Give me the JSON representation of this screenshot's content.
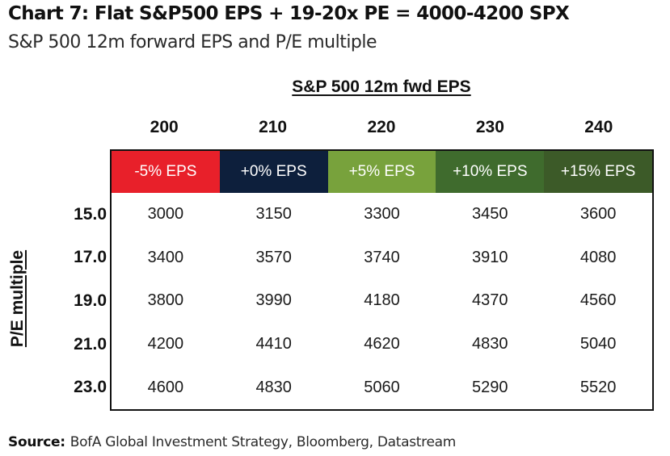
{
  "header": {
    "title": "Chart 7: Flat S&P500 EPS + 19-20x PE = 4000-4200 SPX",
    "subtitle": "S&P 500 12m forward EPS and P/E multiple"
  },
  "chart_data": {
    "type": "table",
    "column_axis_title": "S&P 500 12m fwd EPS",
    "row_axis_title": "P/E multiple",
    "columns": [
      "200",
      "210",
      "220",
      "230",
      "240"
    ],
    "column_labels": [
      "-5% EPS",
      "+0% EPS",
      "+5% EPS",
      "+10% EPS",
      "+15% EPS"
    ],
    "column_label_colors": [
      "#e8202a",
      "#0d1f3c",
      "#78a23c",
      "#3f6b2d",
      "#3c5a28"
    ],
    "rows": [
      "15.0",
      "17.0",
      "19.0",
      "21.0",
      "23.0"
    ],
    "values": [
      [
        "3000",
        "3150",
        "3300",
        "3450",
        "3600"
      ],
      [
        "3400",
        "3570",
        "3740",
        "3910",
        "4080"
      ],
      [
        "3800",
        "3990",
        "4180",
        "4370",
        "4560"
      ],
      [
        "4200",
        "4410",
        "4620",
        "4830",
        "5040"
      ],
      [
        "4600",
        "4830",
        "5060",
        "5290",
        "5520"
      ]
    ]
  },
  "footer": {
    "source_label": "Source:",
    "source_text": "BofA Global Investment Strategy, Bloomberg, Datastream"
  }
}
